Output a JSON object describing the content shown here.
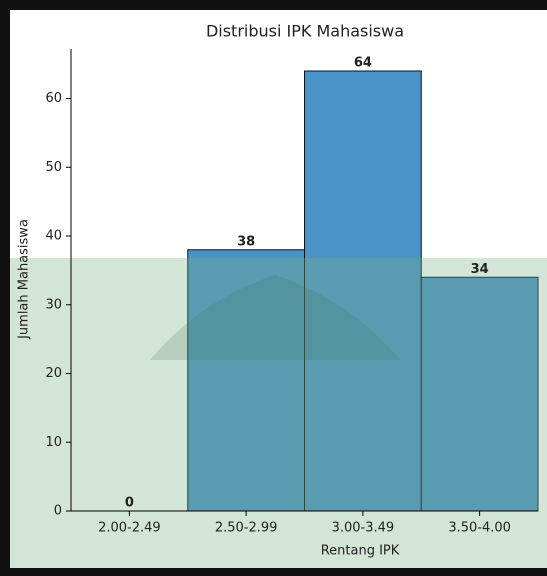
{
  "chart_data": {
    "type": "bar",
    "title": "Distribusi IPK Mahasiswa",
    "x_label": "Rentang IPK",
    "y_label": "Jumlah Mahasiswa",
    "categories": [
      "2.00-2.49",
      "2.50-2.99",
      "3.00-3.49",
      "3.50-4.00"
    ],
    "values": [
      0,
      38,
      64,
      34
    ],
    "color": "#4a93c9",
    "ylim": [
      0,
      67.2
    ],
    "yticks": [
      0,
      10,
      20,
      30,
      40,
      50,
      60
    ]
  }
}
